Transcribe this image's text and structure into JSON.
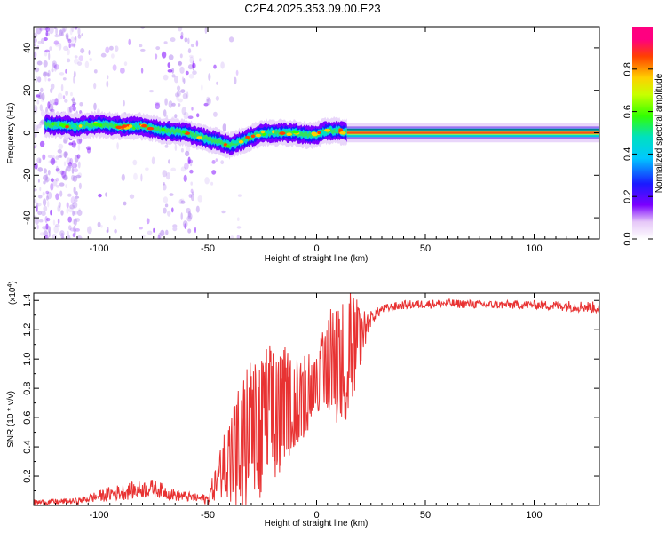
{
  "title": "C2E4.2025.353.09.00.E23",
  "colors": {
    "snr_line": "#e83232",
    "axis": "#000000",
    "background": "#ffffff"
  },
  "chart_data": [
    {
      "type": "heatmap",
      "name": "spectrogram",
      "xlabel": "Height of straight line (km)",
      "ylabel": "Frequency (Hz)",
      "xlim": [
        -130,
        130
      ],
      "ylim": [
        -50,
        50
      ],
      "xticks": [
        -100,
        -50,
        0,
        50,
        100
      ],
      "yticks": [
        -40,
        -20,
        0,
        20,
        40
      ],
      "ridge": {
        "x": [
          -125,
          -110,
          -100,
          -90,
          -80,
          -70,
          -60,
          -50,
          -45,
          -40,
          -35,
          -30,
          -25,
          -20,
          -15,
          -10,
          -5,
          0,
          5,
          10,
          15,
          130
        ],
        "freq": [
          4,
          3,
          4,
          3,
          3,
          1,
          0,
          -3,
          -4,
          -6,
          -4,
          -2,
          0,
          0,
          0,
          0,
          -1,
          -1,
          1,
          1,
          0,
          0
        ]
      },
      "colorbar": {
        "label": "Normalized spectral amplitude",
        "range": [
          0,
          1
        ],
        "ticks": [
          0.0,
          0.2,
          0.4,
          0.6,
          0.8
        ]
      }
    },
    {
      "type": "line",
      "name": "snr",
      "xlabel": "Height of straight line (km)",
      "ylabel": "SNR (10 * v/v)",
      "multiplier": "(x10",
      "multiplier_exp": "4",
      "multiplier_close": ")",
      "xlim": [
        -130,
        130
      ],
      "ylim": [
        0,
        1.45
      ],
      "xticks": [
        -100,
        -50,
        0,
        50,
        100
      ],
      "yticks": [
        0.2,
        0.4,
        0.6,
        0.8,
        1.0,
        1.2,
        1.4
      ],
      "envelope": {
        "x": [
          -130,
          -110,
          -95,
          -85,
          -75,
          -65,
          -55,
          -50,
          -45,
          -40,
          -35,
          -30,
          -25,
          -20,
          -15,
          -10,
          -5,
          0,
          5,
          10,
          15,
          20,
          25,
          30,
          40,
          60,
          80,
          100,
          120,
          130
        ],
        "mean": [
          0.02,
          0.03,
          0.08,
          0.1,
          0.12,
          0.07,
          0.05,
          0.04,
          0.2,
          0.35,
          0.4,
          0.5,
          0.55,
          0.6,
          0.7,
          0.72,
          0.75,
          0.85,
          0.95,
          1.0,
          1.05,
          1.15,
          1.28,
          1.34,
          1.37,
          1.38,
          1.37,
          1.37,
          1.36,
          1.35
        ],
        "spread": [
          0.02,
          0.02,
          0.05,
          0.06,
          0.06,
          0.04,
          0.03,
          0.04,
          0.15,
          0.3,
          0.4,
          0.45,
          0.5,
          0.45,
          0.4,
          0.3,
          0.25,
          0.2,
          0.35,
          0.45,
          0.4,
          0.2,
          0.05,
          0.03,
          0.03,
          0.03,
          0.03,
          0.03,
          0.04,
          0.04
        ]
      }
    }
  ]
}
